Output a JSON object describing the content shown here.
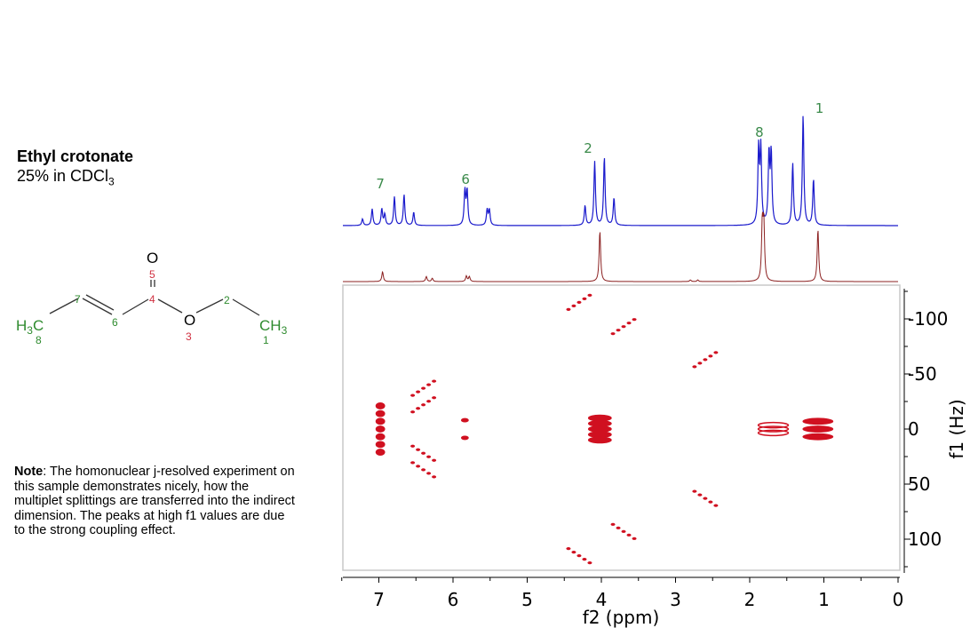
{
  "compound": {
    "name": "Ethyl crotonate",
    "concentration_prefix": "25% in CDCl",
    "concentration_subscript": "3"
  },
  "structure": {
    "atoms": [
      {
        "label": "H3C",
        "number": "8",
        "number_color": "#2e8b2e"
      },
      {
        "label": "7",
        "color": "#2e8b2e"
      },
      {
        "label": "6",
        "color": "#2e8b2e"
      },
      {
        "label": "4",
        "color": "#d03040"
      },
      {
        "label": "O",
        "number": "5",
        "number_color": "#d03040"
      },
      {
        "label": "O",
        "number": "3",
        "number_color": "#d03040"
      },
      {
        "label": "2",
        "color": "#2e8b2e"
      },
      {
        "label": "CH3",
        "number": "1",
        "number_color": "#2e8b2e"
      }
    ]
  },
  "note": {
    "label": "Note",
    "text": ": The homonuclear j-resolved experiment on this sample demonstrates nicely, how the multiplet splittings are transferred into the indirect dimension. The peaks at high f1 values are due to the strong coupling effect."
  },
  "colors": {
    "spectrum_1d": "#1a1acc",
    "projection": "#8b2020",
    "contour": "#d01020",
    "peak_label": "#3a8a4a",
    "frame": "#c8c8c8"
  },
  "chart_data": {
    "type": "2D NMR J-resolved (contour) with 1D projections",
    "title": "Ethyl crotonate 25% in CDCl3",
    "xlabel": "f2 (ppm)",
    "ylabel": "f1 (Hz)",
    "xlim": [
      7.5,
      0
    ],
    "ylim": [
      -125,
      125
    ],
    "x_ticks": [
      7,
      6,
      5,
      4,
      3,
      2,
      1,
      0
    ],
    "y_ticks": [
      -100,
      -50,
      0,
      50,
      100
    ],
    "peak_labels": [
      {
        "label": "7",
        "ppm": 6.98
      },
      {
        "label": "6",
        "ppm": 5.83
      },
      {
        "label": "2",
        "ppm": 4.18
      },
      {
        "label": "8",
        "ppm": 1.87
      },
      {
        "label": "1",
        "ppm": 1.06
      }
    ],
    "spectrum_1d_peaks": [
      {
        "ppm": 7.22,
        "h": 0.06
      },
      {
        "ppm": 7.09,
        "h": 0.15
      },
      {
        "ppm": 6.96,
        "h": 0.15
      },
      {
        "ppm": 6.92,
        "h": 0.1
      },
      {
        "ppm": 6.79,
        "h": 0.26
      },
      {
        "ppm": 6.66,
        "h": 0.28
      },
      {
        "ppm": 6.53,
        "h": 0.12
      },
      {
        "ppm": 5.84,
        "h": 0.31
      },
      {
        "ppm": 5.81,
        "h": 0.31
      },
      {
        "ppm": 5.54,
        "h": 0.14
      },
      {
        "ppm": 5.51,
        "h": 0.14
      },
      {
        "ppm": 4.22,
        "h": 0.18
      },
      {
        "ppm": 4.09,
        "h": 0.58
      },
      {
        "ppm": 3.96,
        "h": 0.62
      },
      {
        "ppm": 3.83,
        "h": 0.25
      },
      {
        "ppm": 1.88,
        "h": 0.68
      },
      {
        "ppm": 1.85,
        "h": 0.68
      },
      {
        "ppm": 1.74,
        "h": 0.64
      },
      {
        "ppm": 1.71,
        "h": 0.64
      },
      {
        "ppm": 1.42,
        "h": 0.56
      },
      {
        "ppm": 1.28,
        "h": 1.0
      },
      {
        "ppm": 1.14,
        "h": 0.42
      }
    ],
    "projection_peaks": [
      {
        "ppm": 6.95,
        "h": 0.18
      },
      {
        "ppm": 6.36,
        "h": 0.09
      },
      {
        "ppm": 6.28,
        "h": 0.06
      },
      {
        "ppm": 5.82,
        "h": 0.1
      },
      {
        "ppm": 5.78,
        "h": 0.09
      },
      {
        "ppm": 4.02,
        "h": 0.92
      },
      {
        "ppm": 2.8,
        "h": 0.03
      },
      {
        "ppm": 2.7,
        "h": 0.03
      },
      {
        "ppm": 1.83,
        "h": 1.0
      },
      {
        "ppm": 1.81,
        "h": 1.0
      },
      {
        "ppm": 1.08,
        "h": 0.95
      }
    ],
    "contour_peaks_f2_ppm_f1_hz": [
      {
        "ppm": 6.98,
        "f1": [
          -21,
          -14,
          -7,
          0,
          7,
          14,
          21
        ],
        "note": "H7 multiplet"
      },
      {
        "ppm": 6.4,
        "f1": [
          -37,
          -22,
          22,
          37
        ],
        "note": "H7 strong-coupling artifacts"
      },
      {
        "ppm": 5.84,
        "f1": [
          -8,
          8
        ],
        "note": "H6"
      },
      {
        "ppm": 4.02,
        "f1": [
          -10,
          -5,
          0,
          5,
          10
        ],
        "note": "H2 quartet"
      },
      {
        "ppm": 4.3,
        "f1": [
          -115,
          115
        ],
        "note": "high-f1 artifact"
      },
      {
        "ppm": 3.7,
        "f1": [
          -93,
          93
        ],
        "note": "high-f1 artifact"
      },
      {
        "ppm": 2.6,
        "f1": [
          -63,
          63
        ],
        "note": "high-f1 artifact"
      },
      {
        "ppm": 1.85,
        "f1": [
          -3.5,
          0,
          3.5
        ],
        "note": "H8 dd"
      },
      {
        "ppm": 1.08,
        "f1": [
          -7,
          0,
          7
        ],
        "note": "H1 triplet"
      }
    ]
  }
}
